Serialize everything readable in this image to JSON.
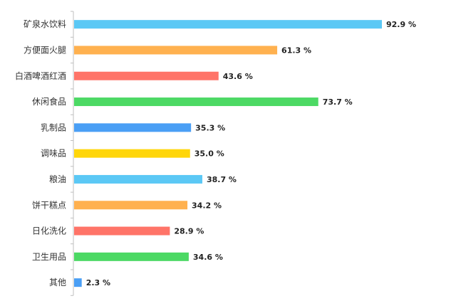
{
  "chart_data": {
    "type": "bar",
    "orientation": "horizontal",
    "categories": [
      "矿泉水饮料",
      "方便面火腿",
      "白酒啤酒红酒",
      "休闲食品",
      "乳制品",
      "调味品",
      "粮油",
      "饼干糕点",
      "日化洗化",
      "卫生用品",
      "其他"
    ],
    "values": [
      92.9,
      61.3,
      43.6,
      73.7,
      35.3,
      35.0,
      38.7,
      34.2,
      28.9,
      34.6,
      2.3
    ],
    "value_labels": [
      "92.9 %",
      "61.3 %",
      "43.6 %",
      "73.7 %",
      "35.3 %",
      "35.0 %",
      "38.7 %",
      "34.2 %",
      "28.9 %",
      "34.6 %",
      "2.3 %"
    ],
    "colors": [
      "#5bc8f5",
      "#ffb14f",
      "#ff7468",
      "#4cd964",
      "#4a9ff5",
      "#ffd60a",
      "#5bc8f5",
      "#ffb14f",
      "#ff7468",
      "#4cd964",
      "#4a9ff5"
    ],
    "title": "",
    "xlabel": "",
    "ylabel": "",
    "xlim": [
      0,
      100
    ],
    "grid": false,
    "legend": "none"
  }
}
